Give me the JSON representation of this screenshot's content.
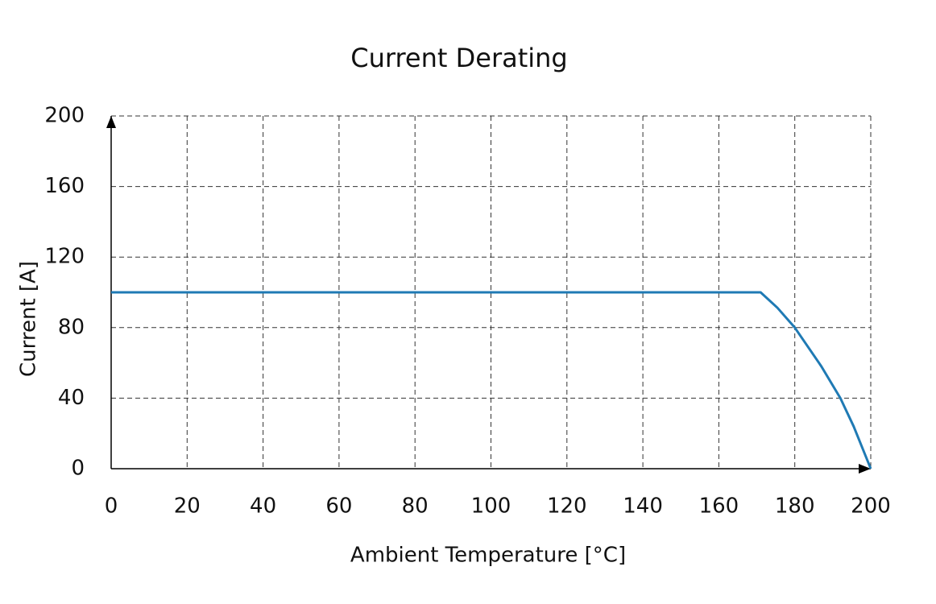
{
  "chart_data": {
    "type": "line",
    "title": "Current Derating",
    "xlabel": "Ambient Temperature [°C]",
    "ylabel": "Current [A]",
    "x": [
      0,
      171,
      175.4,
      180,
      187,
      192,
      195.5,
      200
    ],
    "series": [
      {
        "color": "#1f7ab4",
        "values": [
          100,
          100,
          91.3,
          80,
          58,
          40,
          24,
          0
        ]
      }
    ],
    "xlim": [
      0,
      200
    ],
    "ylim": [
      0,
      200
    ],
    "xticks": [
      0,
      20,
      40,
      60,
      80,
      100,
      120,
      140,
      160,
      180,
      200
    ],
    "yticks": [
      0,
      40,
      80,
      120,
      160,
      200
    ],
    "grid": true
  }
}
